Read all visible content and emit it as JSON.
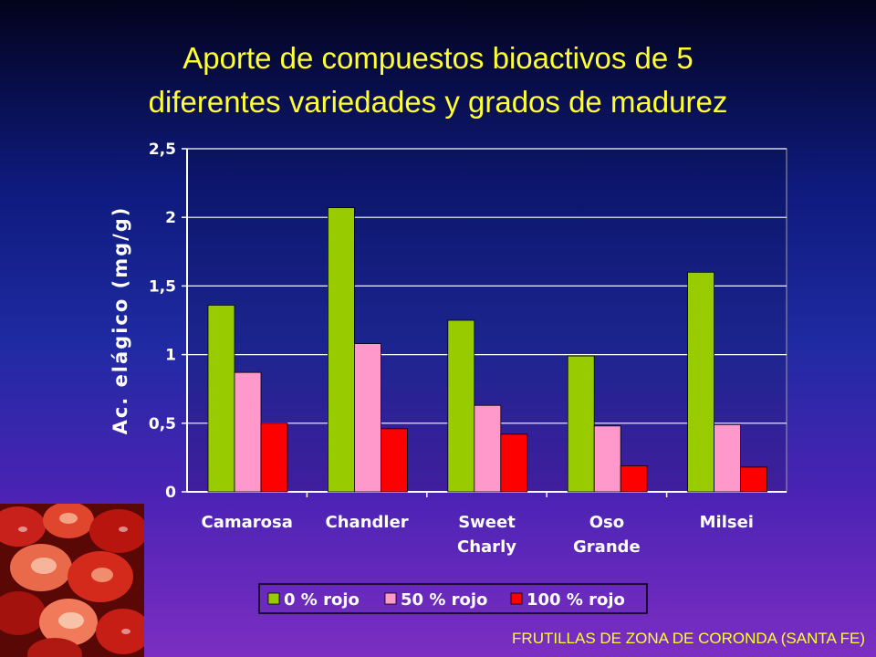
{
  "slide": {
    "title_line1": "Aporte de compuestos bioactivos de 5",
    "title_line2": "diferentes variedades y grados de madurez",
    "footer": "FRUTILLAS DE  ZONA DE CORONDA (SANTA FE)"
  },
  "chart_data": {
    "type": "bar",
    "ylabel": "Ac. elágico (mg/g)",
    "xlabel": "",
    "ylim": [
      0,
      2.5
    ],
    "yticks": [
      0,
      0.5,
      1,
      1.5,
      2,
      2.5
    ],
    "ytick_labels": [
      "0",
      "0,5",
      "1",
      "1,5",
      "2",
      "2,5"
    ],
    "grid": true,
    "legend_position": "bottom",
    "categories": [
      [
        "Camarosa"
      ],
      [
        "Chandler"
      ],
      [
        "Sweet",
        "Charly"
      ],
      [
        "Oso",
        "Grande"
      ],
      [
        "Milsei"
      ]
    ],
    "series": [
      {
        "name": "0 % rojo",
        "color": "#99cc00",
        "values": [
          1.36,
          2.07,
          1.25,
          0.99,
          1.6
        ]
      },
      {
        "name": "50 % rojo",
        "color": "#ff99cc",
        "values": [
          0.87,
          1.08,
          0.63,
          0.48,
          0.49
        ]
      },
      {
        "name": "100 % rojo",
        "color": "#ff0000",
        "values": [
          0.5,
          0.46,
          0.42,
          0.19,
          0.18
        ]
      }
    ]
  }
}
